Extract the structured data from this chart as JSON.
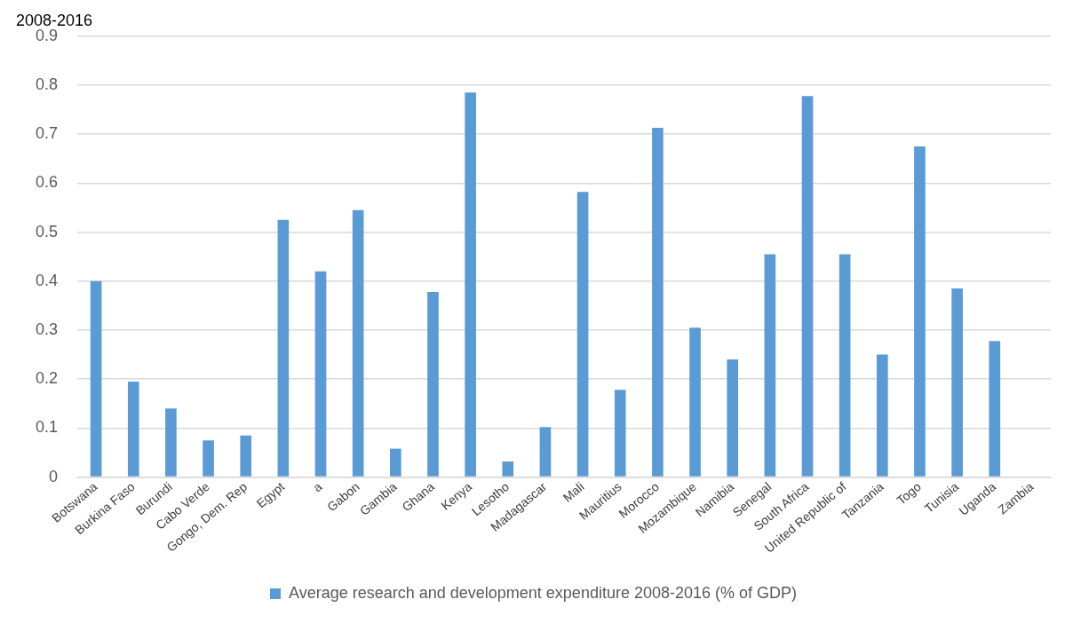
{
  "chart_data": {
    "type": "bar",
    "title": "2008-2016",
    "categories": [
      "Botswana",
      "Burkina Faso",
      "Burundi",
      "Cabo Verde",
      "Gongo, Dem. Rep",
      "Egypt",
      "a",
      "Gabon",
      "Gambia",
      "Ghana",
      "Kenya",
      "Lesotho",
      "Madagascar",
      "Mali",
      "Mauritius",
      "Morocco",
      "Mozambique",
      "Namibia",
      "Senegal",
      "South Africa",
      "United Republic of",
      "Tanzania",
      "Togo",
      "Tunisia",
      "Uganda",
      "Zambia"
    ],
    "series": [
      {
        "name": "Average research and development expenditure 2008-2016 (% of GDP)",
        "color": "#5b9bd5",
        "values": [
          0.4,
          0.195,
          0.14,
          0.075,
          0.085,
          0.525,
          0.42,
          0.545,
          0.058,
          0.378,
          0.785,
          0.032,
          0.102,
          0.582,
          0.178,
          0.713,
          0.305,
          0.24,
          0.455,
          0.778,
          0.455,
          0.25,
          0.675,
          0.385,
          0.278,
          null
        ]
      }
    ],
    "ylim": [
      0,
      0.9
    ],
    "yticks": [
      0,
      0.1,
      0.2,
      0.3,
      0.4,
      0.5,
      0.6,
      0.7,
      0.8,
      0.9
    ],
    "grid": "y",
    "legend": "bottom"
  }
}
